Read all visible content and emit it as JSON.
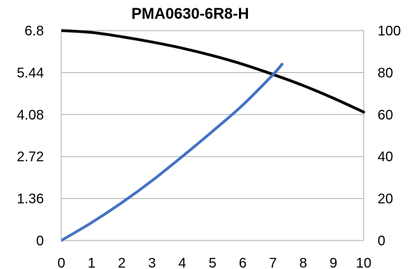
{
  "chart_data": {
    "type": "line",
    "title": "PMA0630-6R8-H",
    "xlabel": "",
    "ylabel": "",
    "y2label": "",
    "xlim": [
      0,
      10
    ],
    "ylim": [
      0,
      6.8
    ],
    "y2lim": [
      0,
      100
    ],
    "x_ticks": [
      "0",
      "1",
      "2",
      "3",
      "4",
      "5",
      "6",
      "7",
      "8",
      "9",
      "10"
    ],
    "y_ticks": [
      "0",
      "1.36",
      "2.72",
      "4.08",
      "5.44",
      "6.8"
    ],
    "y2_ticks": [
      "0",
      "20",
      "40",
      "60",
      "80",
      "100"
    ],
    "grid": true,
    "legend": "none",
    "series": [
      {
        "axis": "left",
        "color": "#000000",
        "x": [
          0,
          1,
          2,
          3,
          4,
          5,
          6,
          7,
          8,
          9,
          10
        ],
        "values": [
          6.8,
          6.74,
          6.6,
          6.43,
          6.23,
          5.99,
          5.71,
          5.38,
          5.02,
          4.61,
          4.16
        ]
      },
      {
        "axis": "right",
        "color": "#4472c4",
        "x": [
          0,
          1,
          2,
          3,
          4,
          5,
          6,
          7,
          7.3
        ],
        "values": [
          0,
          8.5,
          18,
          28.5,
          40,
          52,
          64.5,
          79,
          84
        ]
      }
    ]
  }
}
